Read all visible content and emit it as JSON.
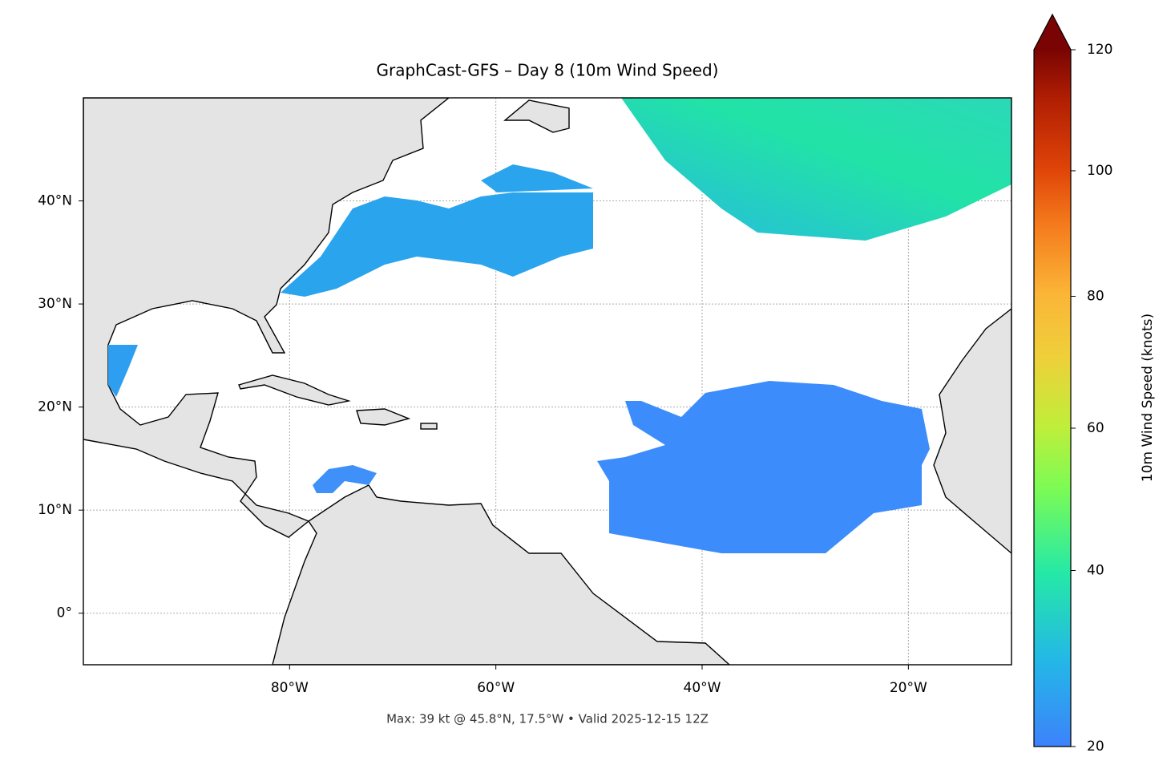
{
  "chart_data": {
    "type": "map",
    "title": "GraphCast-GFS – Day 8 (10m Wind Speed)",
    "annotation": "Max: 39 kt @ 45.8°N, 17.5°W • Valid 2025-12-15 12Z",
    "xlim": [
      -100,
      -10
    ],
    "ylim": [
      -5,
      50
    ],
    "xticks": [
      {
        "value": -80,
        "label": "80°W"
      },
      {
        "value": -60,
        "label": "60°W"
      },
      {
        "value": -40,
        "label": "40°W"
      },
      {
        "value": -20,
        "label": "20°W"
      }
    ],
    "yticks": [
      {
        "value": 0,
        "label": "0°"
      },
      {
        "value": 10,
        "label": "10°N"
      },
      {
        "value": 20,
        "label": "20°N"
      },
      {
        "value": 30,
        "label": "30°N"
      },
      {
        "value": 40,
        "label": "40°N"
      }
    ],
    "grid": true,
    "colorbar": {
      "label": "10m Wind Speed (knots)",
      "lim": [
        20,
        120
      ],
      "ticks": [
        20,
        40,
        60,
        80,
        100,
        120
      ],
      "gamma": 0.855,
      "extend": "max"
    }
  }
}
